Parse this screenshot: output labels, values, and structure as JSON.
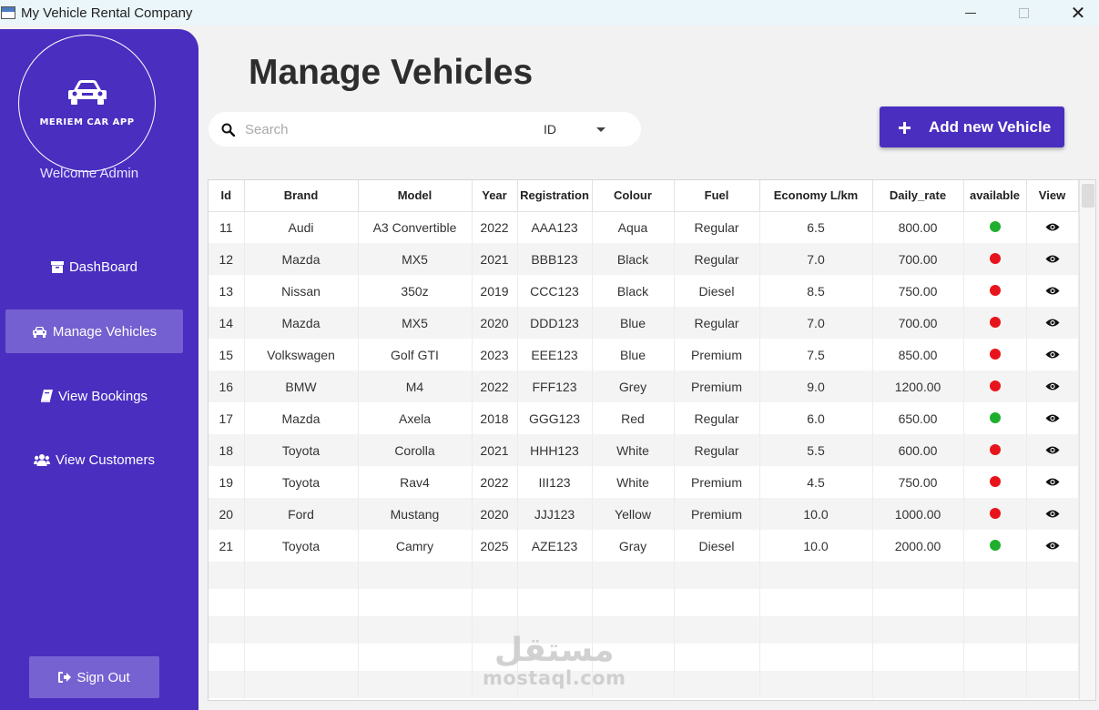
{
  "window": {
    "title": "My Vehicle Rental Company",
    "close_glyph": "✕"
  },
  "sidebar": {
    "logo_text": "MERIEM CAR APP",
    "welcome": "Welcome Admin",
    "items": [
      {
        "label": "DashBoard",
        "icon": "archive-icon"
      },
      {
        "label": "Manage Vehicles",
        "icon": "car-icon",
        "active": true
      },
      {
        "label": "View Bookings",
        "icon": "book-icon"
      },
      {
        "label": "View Customers",
        "icon": "users-icon"
      }
    ],
    "signout_label": "Sign Out"
  },
  "main": {
    "title": "Manage Vehicles",
    "search": {
      "placeholder": "Search",
      "value": ""
    },
    "filter_select": {
      "selected": "ID"
    },
    "add_button_label": "Add new Vehicle"
  },
  "table": {
    "headers": [
      "Id",
      "Brand",
      "Model",
      "Year",
      "Registration",
      "Colour",
      "Fuel",
      "Economy L/km",
      "Daily_rate",
      "available",
      "View"
    ],
    "rows": [
      {
        "id": "11",
        "brand": "Audi",
        "model": "A3 Convertible",
        "year": "2022",
        "registration": "AAA123",
        "colour": "Aqua",
        "fuel": "Regular",
        "economy": "6.5",
        "daily_rate": "800.00",
        "available": true
      },
      {
        "id": "12",
        "brand": "Mazda",
        "model": "MX5",
        "year": "2021",
        "registration": "BBB123",
        "colour": "Black",
        "fuel": "Regular",
        "economy": "7.0",
        "daily_rate": "700.00",
        "available": false
      },
      {
        "id": "13",
        "brand": "Nissan",
        "model": "350z",
        "year": "2019",
        "registration": "CCC123",
        "colour": "Black",
        "fuel": "Diesel",
        "economy": "8.5",
        "daily_rate": "750.00",
        "available": false
      },
      {
        "id": "14",
        "brand": "Mazda",
        "model": "MX5",
        "year": "2020",
        "registration": "DDD123",
        "colour": "Blue",
        "fuel": "Regular",
        "economy": "7.0",
        "daily_rate": "700.00",
        "available": false
      },
      {
        "id": "15",
        "brand": "Volkswagen",
        "model": "Golf GTI",
        "year": "2023",
        "registration": "EEE123",
        "colour": "Blue",
        "fuel": "Premium",
        "economy": "7.5",
        "daily_rate": "850.00",
        "available": false
      },
      {
        "id": "16",
        "brand": "BMW",
        "model": "M4",
        "year": "2022",
        "registration": "FFF123",
        "colour": "Grey",
        "fuel": "Premium",
        "economy": "9.0",
        "daily_rate": "1200.00",
        "available": false
      },
      {
        "id": "17",
        "brand": "Mazda",
        "model": "Axela",
        "year": "2018",
        "registration": "GGG123",
        "colour": "Red",
        "fuel": "Regular",
        "economy": "6.0",
        "daily_rate": "650.00",
        "available": true
      },
      {
        "id": "18",
        "brand": "Toyota",
        "model": "Corolla",
        "year": "2021",
        "registration": "HHH123",
        "colour": "White",
        "fuel": "Regular",
        "economy": "5.5",
        "daily_rate": "600.00",
        "available": false
      },
      {
        "id": "19",
        "brand": "Toyota",
        "model": "Rav4",
        "year": "2022",
        "registration": "III123",
        "colour": "White",
        "fuel": "Premium",
        "economy": "4.5",
        "daily_rate": "750.00",
        "available": false
      },
      {
        "id": "20",
        "brand": "Ford",
        "model": "Mustang",
        "year": "2020",
        "registration": "JJJ123",
        "colour": "Yellow",
        "fuel": "Premium",
        "economy": "10.0",
        "daily_rate": "1000.00",
        "available": false
      },
      {
        "id": "21",
        "brand": "Toyota",
        "model": "Camry",
        "year": "2025",
        "registration": "AZE123",
        "colour": "Gray",
        "fuel": "Diesel",
        "economy": "10.0",
        "daily_rate": "2000.00",
        "available": true
      }
    ],
    "empty_rows": 5,
    "view_icon": "eye-icon"
  },
  "colors": {
    "primary": "#4a2ec0",
    "nav_active": "#7460d0",
    "available": "#1fae2e",
    "unavailable": "#e8141c"
  },
  "watermark": {
    "arabic": "مستقل",
    "latin": "mostaql.com"
  }
}
